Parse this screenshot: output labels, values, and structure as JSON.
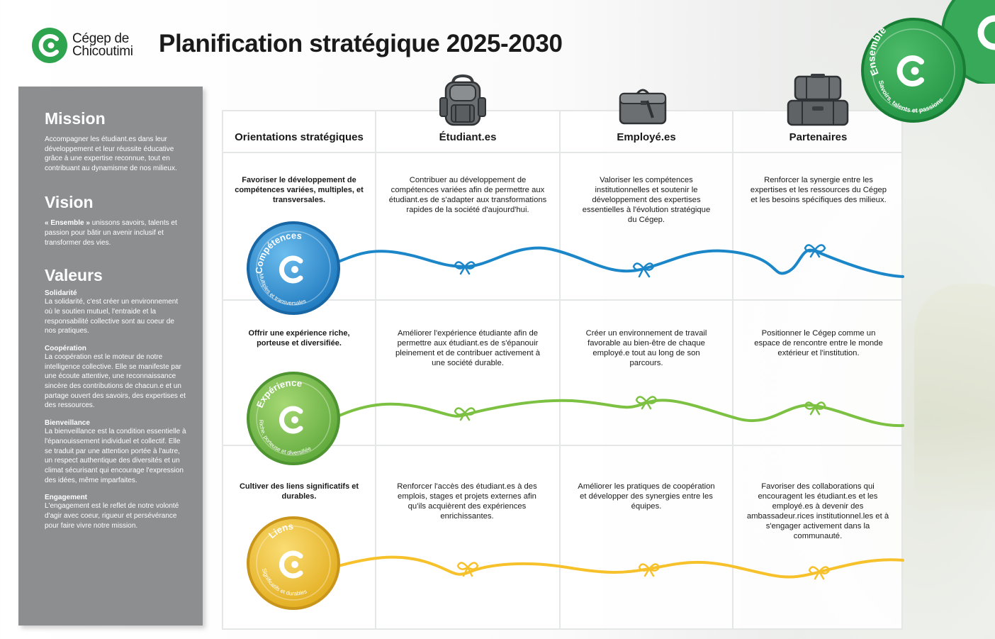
{
  "header": {
    "logo_line1": "Cégep de",
    "logo_line2": "Chicoutimi",
    "title": "Planification stratégique 2025-2030"
  },
  "sidebar": {
    "mission": {
      "heading": "Mission",
      "text": "Accompagner les étudiant.es dans leur développement et leur réussite éducative grâce à une expertise reconnue, tout en contribuant au dynamisme de nos milieux."
    },
    "vision": {
      "heading": "Vision",
      "text_bold": "« Ensemble »",
      "text": " unissons savoirs, talents et passion pour bâtir un avenir inclusif et transformer des vies."
    },
    "valeurs": {
      "heading": "Valeurs",
      "items": [
        {
          "title": "Solidarité",
          "text": "La solidarité, c'est créer un environnement où le soutien mutuel, l'entraide et la responsabilité collective sont au coeur de nos pratiques."
        },
        {
          "title": "Coopération",
          "text": "La coopération est le moteur de notre intelligence collective. Elle se manifeste par une écoute attentive, une reconnaissance sincère des contributions de chacun.e et un partage ouvert des savoirs, des expertises et des ressources."
        },
        {
          "title": "Bienveillance",
          "text": "La bienveillance est la condition essentielle à l'épanouissement individuel et collectif. Elle se traduit par une attention portée à l'autre, un respect authentique des diversités et un climat sécurisant qui encourage l'expression des idées, même imparfaites."
        },
        {
          "title": "Engagement",
          "text": "L'engagement est le reflet de notre volonté d'agir avec coeur, rigueur et persévérance pour faire vivre notre mission."
        }
      ]
    }
  },
  "table": {
    "headers": [
      "Orientations stratégiques",
      "Étudiant.es",
      "Employé.es",
      "Partenaires"
    ],
    "rows": [
      {
        "orientation": "Favoriser le développement de compétences variées, multiples, et transversales.",
        "cells": [
          "Contribuer au développement de compétences variées afin de permettre aux étudiant.es de s'adapter aux transformations rapides de la société d'aujourd'hui.",
          "Valoriser les compétences institutionnelles et soutenir le développement des expertises essentielles à l'évolution stratégique du Cégep.",
          "Renforcer la synergie entre les expertises et les ressources du Cégep et les besoins spécifiques des milieux."
        ],
        "badge_title": "Compétences",
        "badge_subtitle": "Multiples et transversales",
        "color": "#1b86c8",
        "badge_light": "#63b6ea",
        "badge_dark": "#1d78bd"
      },
      {
        "orientation": "Offrir une expérience riche, porteuse et diversifiée.",
        "cells": [
          "Améliorer l'expérience étudiante afin de permettre aux étudiant.es de s'épanouir pleinement et de contribuer activement à une société durable.",
          "Créer un environnement de travail favorable au bien-être de chaque employé.e tout au long de son parcours.",
          "Positionner le Cégep comme un espace de rencontre entre le monde extérieur et l'institution."
        ],
        "badge_title": "Expérience",
        "badge_subtitle": "Riche, porteuse et diversifiée",
        "color": "#7cc142",
        "badge_light": "#9fd46a",
        "badge_dark": "#5ea83a"
      },
      {
        "orientation": "Cultiver des liens significatifs et durables.",
        "cells": [
          "Renforcer l'accès des étudiant.es à des emplois, stages et projets externes afin qu'ils acquièrent des expériences enrichissantes.",
          "Améliorer les pratiques de coopération et développer des synergies entre les équipes.",
          "Favoriser des collaborations qui encouragent les étudiant.es et les employé.es à devenir des ambassadeur.rices institutionnel.les et à s'engager activement dans la communauté."
        ],
        "badge_title": "Liens",
        "badge_subtitle": "Significatifs et durables",
        "color": "#f7c12b",
        "badge_light": "#f8d35c",
        "badge_dark": "#e2ac1d"
      }
    ]
  },
  "corner_badge": {
    "title": "Ensemble",
    "subtitle": "Savoirs, talents et passions",
    "color": "#2ea44f"
  },
  "icons": {
    "students": "backpack-icon",
    "employees": "briefcase-icon",
    "partners": "luggage-icon"
  },
  "colors": {
    "brand_green": "#2ea44f",
    "sidebar_gray": "#8c8e90"
  }
}
